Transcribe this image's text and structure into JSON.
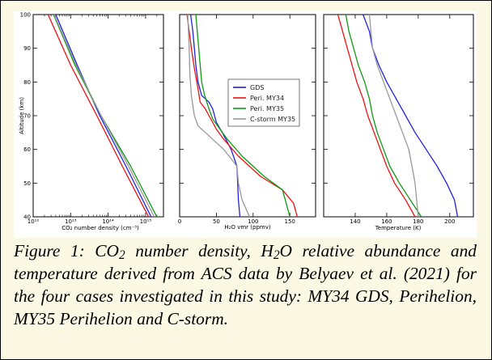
{
  "panels": [
    {
      "id": "co2",
      "xlabel": "CO₂ number density (cm⁻³)",
      "ylabel": "Altitude (km)",
      "xscale": "log",
      "xlim": [
        1000000000000.0,
        3000000000000000.0
      ],
      "xticks": [
        {
          "value": 1000000000000.0,
          "label": "10¹²"
        },
        {
          "value": 10000000000000.0,
          "label": "10¹³"
        },
        {
          "value": 100000000000000.0,
          "label": "10¹⁴"
        },
        {
          "value": 1000000000000000.0,
          "label": "10¹⁵"
        }
      ],
      "yticks": [
        40,
        50,
        60,
        70,
        80,
        90,
        100
      ]
    },
    {
      "id": "h2o",
      "xlabel": "H₂O vmr (ppmv)",
      "xscale": "linear",
      "xlim": [
        0,
        185
      ],
      "xticks": [
        {
          "value": 0,
          "label": "0"
        },
        {
          "value": 50,
          "label": "50"
        },
        {
          "value": 100,
          "label": "100"
        },
        {
          "value": 150,
          "label": "150"
        }
      ]
    },
    {
      "id": "temp",
      "xlabel": "Temperature (K)",
      "xscale": "linear",
      "xlim": [
        120,
        215
      ],
      "xticks": [
        {
          "value": 140,
          "label": "140"
        },
        {
          "value": 160,
          "label": "160"
        },
        {
          "value": 180,
          "label": "180"
        },
        {
          "value": 200,
          "label": "200"
        }
      ]
    }
  ],
  "legend": [
    {
      "name": "GDS",
      "color": "#2222dd"
    },
    {
      "name": "Peri. MY34",
      "color": "#ee1111"
    },
    {
      "name": "Peri. MY35",
      "color": "#119911"
    },
    {
      "name": "C-storm MY35",
      "color": "#999999"
    }
  ],
  "chart_data": {
    "type": "line",
    "ylim": [
      40,
      100
    ],
    "panels": {
      "co2": {
        "series": [
          {
            "color": "#2222dd",
            "x": [
              1400000000000000.0,
              300000000000000.0,
              60000000000000.0,
              15000000000000.0,
              4000000000000.0
            ],
            "y": [
              40,
              55,
              70,
              85,
              100
            ]
          },
          {
            "color": "#ee1111",
            "x": [
              1200000000000000.0,
              240000000000000.0,
              50000000000000.0,
              10000000000000.0,
              2500000000000.0
            ],
            "y": [
              40,
              55,
              70,
              85,
              100
            ]
          },
          {
            "color": "#119911",
            "x": [
              2000000000000000.0,
              400000000000000.0,
              65000000000000.0,
              13000000000000.0,
              3500000000000.0
            ],
            "y": [
              40,
              55,
              70,
              85,
              100
            ]
          },
          {
            "color": "#999999",
            "x": [
              1700000000000000.0,
              350000000000000.0,
              65000000000000.0,
              14000000000000.0,
              3600000000000.0
            ],
            "y": [
              40,
              55,
              70,
              85,
              100
            ]
          }
        ]
      },
      "h2o": {
        "series": [
          {
            "color": "#2222dd",
            "x": [
              82,
              80,
              79,
              78,
              70,
              58,
              50,
              45,
              40,
              30,
              25,
              22,
              20,
              18,
              15
            ],
            "y": [
              40,
              45,
              50,
              55,
              60,
              65,
              68,
              72,
              74,
              76,
              80,
              85,
              90,
              95,
              100
            ]
          },
          {
            "color": "#ee1111",
            "x": [
              160,
              155,
              140,
              110,
              80,
              60,
              50,
              40,
              35,
              28,
              25,
              20,
              16,
              13,
              10
            ],
            "y": [
              40,
              44,
              48,
              52,
              58,
              63,
              66,
              70,
              72,
              74,
              78,
              84,
              90,
              95,
              100
            ]
          },
          {
            "color": "#119911",
            "x": [
              150,
              145,
              140,
              115,
              85,
              65,
              55,
              45,
              40,
              34,
              30,
              28,
              26,
              24,
              22
            ],
            "y": [
              40,
              44,
              48,
              52,
              58,
              63,
              66,
              69,
              72,
              76,
              80,
              85,
              90,
              95,
              100
            ]
          },
          {
            "color": "#999999",
            "x": [
              95,
              85,
              80,
              78,
              60,
              45,
              35,
              25,
              20,
              18,
              16,
              14,
              13,
              12,
              11
            ],
            "y": [
              40,
              45,
              50,
              55,
              60,
              63,
              65,
              67,
              70,
              73,
              76,
              82,
              90,
              95,
              100
            ]
          }
        ]
      },
      "temp": {
        "series": [
          {
            "color": "#2222dd",
            "x": [
              205,
              203,
              198,
              192,
              185,
              178,
              172,
              166,
              160,
              155,
              151,
              149,
              145
            ],
            "y": [
              40,
              45,
              50,
              55,
              60,
              65,
              70,
              75,
              80,
              85,
              90,
              95,
              100
            ]
          },
          {
            "color": "#ee1111",
            "x": [
              178,
              172,
              165,
              160,
              156,
              152,
              148,
              145,
              141,
              138,
              135,
              132,
              129
            ],
            "y": [
              40,
              45,
              50,
              55,
              60,
              65,
              70,
              75,
              80,
              85,
              90,
              95,
              100
            ]
          },
          {
            "color": "#119911",
            "x": [
              182,
              175,
              168,
              162,
              158,
              154,
              151,
              149,
              146,
              142,
              139,
              136,
              134
            ],
            "y": [
              40,
              45,
              50,
              55,
              60,
              65,
              70,
              75,
              80,
              85,
              90,
              95,
              100
            ]
          },
          {
            "color": "#999999",
            "x": [
              180,
              179,
              178,
              176,
              174,
              170,
              166,
              162,
              158,
              154,
              151,
              150,
              149
            ],
            "y": [
              40,
              45,
              50,
              55,
              60,
              65,
              70,
              75,
              80,
              85,
              90,
              95,
              100
            ]
          }
        ]
      }
    }
  },
  "caption": {
    "prefix": "Figure 1: CO",
    "sub1": "2",
    "mid1": " number density, H",
    "sub2": "2",
    "rest": "O relative abundance and temperature derived from ACS data by Belyaev et al. (2021) for the four cases investigated in this study: MY34 GDS, Perihelion, MY35 Perihelion and C-storm."
  }
}
